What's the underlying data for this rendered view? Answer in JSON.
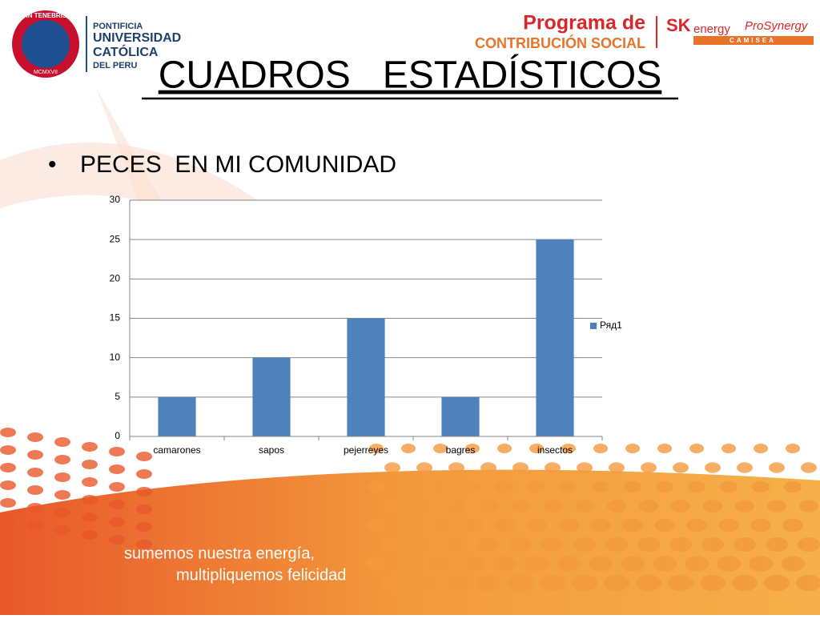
{
  "logos": {
    "motto": "ET LUX IN TENEBRIS LUCET",
    "year": "MCMXVII",
    "university": [
      "PONTIFICIA",
      "UNIVERSIDAD",
      "CATÓLICA",
      "DEL PERU"
    ],
    "program": [
      "Programa de",
      "CONTRIBUCIÓN SOCIAL"
    ],
    "sk": "SK",
    "energy": "energy",
    "prosynergy": "ProSynergy",
    "camisea": "CAMISEA"
  },
  "title": "CUADROS   ESTADÍSTICOS",
  "bullet": "PECES  EN MI COMUNIDAD",
  "chart_data": {
    "type": "bar",
    "categories": [
      "camarones",
      "sapos",
      "pejerreyes",
      "bagres",
      "insectos"
    ],
    "series": [
      {
        "name": "Ряд1",
        "color": "#4f81bd",
        "values": [
          5,
          10,
          15,
          5,
          25
        ]
      }
    ],
    "ylim": [
      0,
      30
    ],
    "yticks": [
      0,
      5,
      10,
      15,
      20,
      25,
      30
    ],
    "grid": true,
    "legend": "right"
  },
  "footer": [
    "sumemos nuestra energía,",
    "multipliquemos felicidad"
  ]
}
